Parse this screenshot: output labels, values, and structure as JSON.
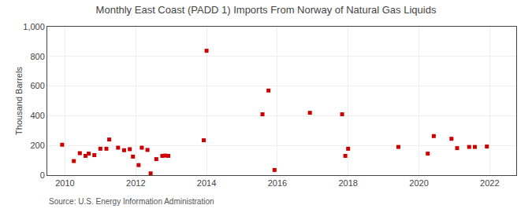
{
  "chart_data": {
    "type": "scatter",
    "title": "Monthly East Coast (PADD 1) Imports From Norway of Natural Gas Liquids",
    "ylabel": "Thousand Barrels",
    "source": "Source: U.S. Energy Information Administration",
    "color": "#cc0000",
    "marker": "square",
    "grid": true,
    "xlim": [
      2009.5,
      2022.75
    ],
    "xticks": [
      2010,
      2012,
      2014,
      2016,
      2018,
      2020,
      2022
    ],
    "ylim": [
      0,
      1000
    ],
    "yticks": [
      0,
      200,
      400,
      600,
      800,
      {
        "value": 1000,
        "label": "1,000"
      }
    ],
    "x": [
      2009.92,
      2010.25,
      2010.42,
      2010.58,
      2010.67,
      2010.83,
      2011.0,
      2011.17,
      2011.25,
      2011.5,
      2011.67,
      2011.83,
      2011.92,
      2012.08,
      2012.17,
      2012.33,
      2012.42,
      2012.58,
      2012.75,
      2012.83,
      2012.92,
      2013.92,
      2014.0,
      2015.58,
      2015.75,
      2015.92,
      2016.92,
      2017.83,
      2017.92,
      2018.0,
      2019.42,
      2020.25,
      2020.42,
      2020.92,
      2021.08,
      2021.42,
      2021.58,
      2021.92
    ],
    "values": [
      205,
      95,
      148,
      130,
      145,
      135,
      178,
      178,
      240,
      185,
      168,
      175,
      125,
      68,
      185,
      170,
      12,
      108,
      130,
      132,
      130,
      235,
      838,
      410,
      570,
      35,
      420,
      410,
      130,
      178,
      190,
      145,
      263,
      245,
      182,
      190,
      190,
      193
    ]
  }
}
